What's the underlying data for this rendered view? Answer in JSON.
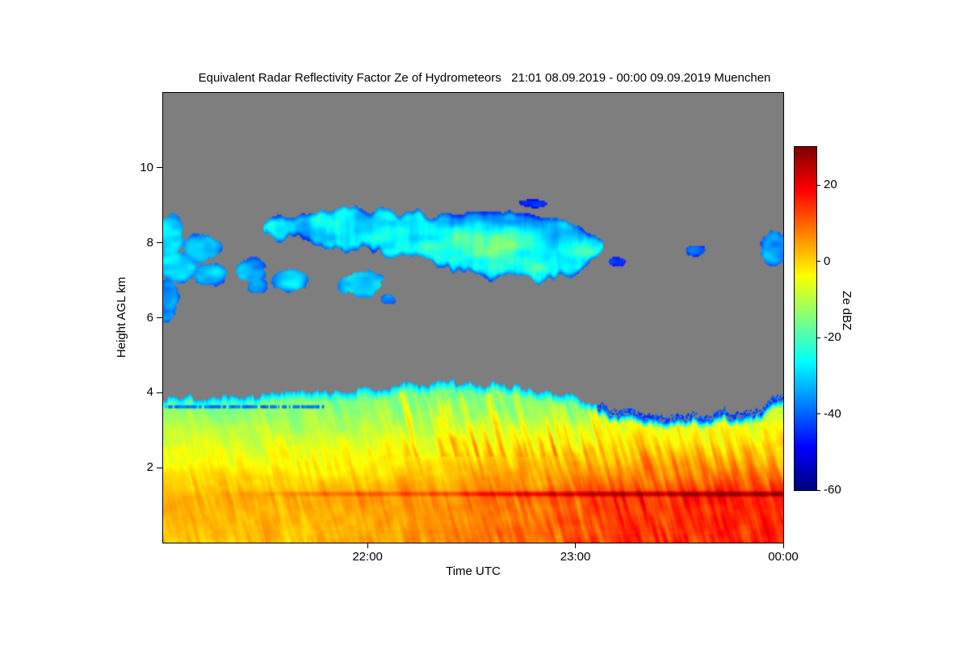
{
  "chart_data": {
    "type": "heatmap",
    "title": "Equivalent Radar Reflectivity Factor Ze of Hydrometeors   21:01 08.09.2019 - 00:00 09.09.2019 Muenchen",
    "station": "Muenchen",
    "time_start": "21:01 08.09.2019",
    "time_end": "00:00 09.09.2019",
    "xlabel": "Time UTC",
    "ylabel": "Height AGL km",
    "colorbar_label": "Ze dBZ",
    "colormap": "jet",
    "no_data_color": "#7e7e7e",
    "x_range_hours": [
      21.0167,
      24.0
    ],
    "x_ticks": [
      {
        "value": 22,
        "label": "22:00"
      },
      {
        "value": 23,
        "label": "23:00"
      },
      {
        "value": 24,
        "label": "00:00"
      }
    ],
    "y_range_km": [
      0,
      12
    ],
    "y_ticks": [
      {
        "value": 2,
        "label": "2"
      },
      {
        "value": 4,
        "label": "4"
      },
      {
        "value": 6,
        "label": "6"
      },
      {
        "value": 8,
        "label": "8"
      },
      {
        "value": 10,
        "label": "10"
      }
    ],
    "colorbar_range_dbz": [
      -60,
      30
    ],
    "colorbar_ticks": [
      {
        "value": 20,
        "label": "20"
      },
      {
        "value": 0,
        "label": "0"
      },
      {
        "value": -20,
        "label": "-20"
      },
      {
        "value": -40,
        "label": "-40"
      },
      {
        "value": -60,
        "label": "-60"
      }
    ],
    "features": {
      "upper_cloud_band": {
        "t_start": 21.5,
        "t_end": 23.13,
        "top_km": [
          [
            21.5,
            8.6
          ],
          [
            21.65,
            8.8
          ],
          [
            21.9,
            8.9
          ],
          [
            22.2,
            8.8
          ],
          [
            22.5,
            8.65
          ],
          [
            22.75,
            8.75
          ],
          [
            22.95,
            8.5
          ],
          [
            23.13,
            8.05
          ]
        ],
        "bottom_km": [
          [
            21.5,
            8.25
          ],
          [
            21.8,
            7.95
          ],
          [
            22.1,
            7.6
          ],
          [
            22.4,
            7.4
          ],
          [
            22.7,
            7.1
          ],
          [
            22.95,
            7.0
          ],
          [
            23.13,
            7.75
          ]
        ],
        "dbz_typical": -32
      },
      "cloud_patches": [
        {
          "t": 21.05,
          "h": 8.2,
          "rt": 0.07,
          "rh": 0.55,
          "dbz": -33
        },
        {
          "t": 21.08,
          "h": 7.35,
          "rt": 0.1,
          "rh": 0.4,
          "dbz": -34
        },
        {
          "t": 21.04,
          "h": 6.6,
          "rt": 0.05,
          "rh": 0.45,
          "dbz": -36
        },
        {
          "t": 21.03,
          "h": 6.1,
          "rt": 0.04,
          "rh": 0.2,
          "dbz": -38
        },
        {
          "t": 21.2,
          "h": 7.85,
          "rt": 0.09,
          "rh": 0.38,
          "dbz": -34
        },
        {
          "t": 21.24,
          "h": 7.15,
          "rt": 0.08,
          "rh": 0.3,
          "dbz": -35
        },
        {
          "t": 21.44,
          "h": 7.25,
          "rt": 0.07,
          "rh": 0.33,
          "dbz": -33
        },
        {
          "t": 21.47,
          "h": 6.85,
          "rt": 0.05,
          "rh": 0.2,
          "dbz": -36
        },
        {
          "t": 21.62,
          "h": 7.0,
          "rt": 0.09,
          "rh": 0.3,
          "dbz": -33
        },
        {
          "t": 21.97,
          "h": 6.9,
          "rt": 0.11,
          "rh": 0.33,
          "dbz": -30
        },
        {
          "t": 22.1,
          "h": 6.5,
          "rt": 0.04,
          "rh": 0.13,
          "dbz": -38
        },
        {
          "t": 22.8,
          "h": 9.05,
          "rt": 0.07,
          "rh": 0.1,
          "dbz": -45
        },
        {
          "t": 23.2,
          "h": 7.5,
          "rt": 0.04,
          "rh": 0.13,
          "dbz": -43
        },
        {
          "t": 23.58,
          "h": 7.8,
          "rt": 0.05,
          "rh": 0.14,
          "dbz": -41
        },
        {
          "t": 23.96,
          "h": 7.85,
          "rt": 0.07,
          "rh": 0.45,
          "dbz": -36
        }
      ],
      "precipitation_layer": {
        "echo_top_km": [
          [
            21.02,
            3.85
          ],
          [
            21.25,
            3.9
          ],
          [
            21.6,
            4.0
          ],
          [
            21.9,
            4.05
          ],
          [
            22.15,
            4.2
          ],
          [
            22.4,
            4.3
          ],
          [
            22.65,
            4.2
          ],
          [
            22.85,
            4.05
          ],
          [
            23.0,
            3.85
          ],
          [
            23.15,
            3.6
          ],
          [
            23.35,
            3.45
          ],
          [
            23.6,
            3.4
          ],
          [
            23.85,
            3.55
          ],
          [
            24.0,
            3.9
          ]
        ],
        "profile_dbz_by_km": [
          [
            0,
            2
          ],
          [
            0.8,
            2
          ],
          [
            1.15,
            3
          ],
          [
            1.45,
            1
          ],
          [
            2.0,
            -3
          ],
          [
            2.6,
            -7
          ],
          [
            3.2,
            -11
          ],
          [
            3.6,
            -14
          ],
          [
            4.4,
            -18
          ]
        ],
        "bright_band_km": 1.3,
        "bright_band_strength": [
          [
            21.0,
            0
          ],
          [
            21.45,
            2
          ],
          [
            21.8,
            7
          ],
          [
            22.3,
            9
          ],
          [
            22.6,
            13
          ],
          [
            22.9,
            16
          ],
          [
            24.0,
            17
          ]
        ],
        "east_boost_dbz": [
          [
            21.0,
            0
          ],
          [
            21.8,
            0
          ],
          [
            22.2,
            3
          ],
          [
            22.6,
            6
          ],
          [
            23.0,
            8
          ],
          [
            23.4,
            12
          ],
          [
            24.0,
            13
          ]
        ],
        "speckle_top_after_t": 23.1,
        "speckle_dbz": -47,
        "thin_line_west": {
          "t_end": 21.8,
          "h": 3.62,
          "dbz": -38
        }
      },
      "mid_level_streaks": {
        "t_start": 21.9,
        "t_end": 23.15,
        "h_min": 2.3,
        "h_max": 4.35,
        "amp_dbz": 8
      }
    }
  }
}
